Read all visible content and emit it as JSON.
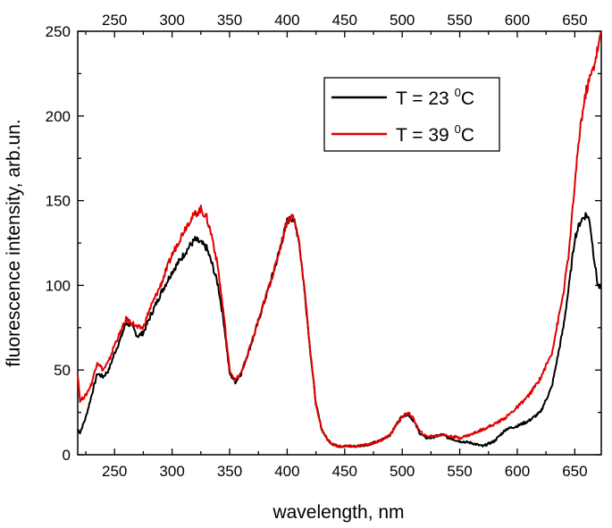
{
  "chart_data": {
    "type": "line",
    "title": "",
    "xlabel": "wavelength, nm",
    "ylabel": "fluorescence intensity, arb.un.",
    "xlim": [
      218,
      673
    ],
    "ylim": [
      0,
      250
    ],
    "x_ticks": [
      250,
      300,
      350,
      400,
      450,
      500,
      550,
      600,
      650
    ],
    "y_ticks": [
      0,
      50,
      100,
      150,
      200,
      250
    ],
    "top_axis_ticks": [
      250,
      300,
      350,
      400,
      450,
      500,
      550,
      600,
      650
    ],
    "grid": false,
    "legend": {
      "position": "top-right",
      "entries": [
        {
          "text": "T = 23 ",
          "sup": "0",
          "unit": "C",
          "color": "#000000"
        },
        {
          "text": "T = 39 ",
          "sup": "0",
          "unit": "C",
          "color": "#e00000"
        }
      ]
    },
    "series": [
      {
        "color": "#000000",
        "x": [
          218,
          220,
          225,
          230,
          235,
          240,
          245,
          250,
          255,
          260,
          265,
          270,
          275,
          280,
          290,
          300,
          310,
          315,
          320,
          325,
          330,
          335,
          340,
          345,
          350,
          355,
          360,
          370,
          380,
          390,
          395,
          400,
          405,
          410,
          415,
          420,
          425,
          430,
          435,
          440,
          445,
          450,
          460,
          470,
          480,
          490,
          495,
          500,
          505,
          510,
          515,
          520,
          525,
          530,
          535,
          540,
          550,
          560,
          570,
          580,
          590,
          600,
          610,
          620,
          630,
          640,
          645,
          650,
          655,
          660,
          663,
          666,
          670,
          673
        ],
        "y": [
          15,
          13,
          22,
          35,
          48,
          46,
          50,
          60,
          68,
          78,
          76,
          70,
          72,
          80,
          95,
          108,
          118,
          123,
          127,
          125,
          122,
          112,
          100,
          78,
          48,
          43,
          48,
          68,
          90,
          112,
          125,
          138,
          140,
          128,
          98,
          62,
          30,
          15,
          9,
          6,
          5,
          5,
          5,
          6,
          8,
          12,
          18,
          23,
          24,
          20,
          13,
          10,
          10,
          11,
          12,
          10,
          8,
          7,
          5,
          8,
          15,
          17,
          20,
          25,
          40,
          75,
          100,
          128,
          138,
          142,
          138,
          120,
          100,
          98
        ]
      },
      {
        "color": "#e00000",
        "x": [
          218,
          220,
          225,
          230,
          235,
          240,
          245,
          250,
          255,
          260,
          265,
          270,
          275,
          280,
          290,
          300,
          310,
          315,
          320,
          325,
          330,
          335,
          340,
          345,
          350,
          355,
          360,
          370,
          380,
          390,
          395,
          400,
          405,
          410,
          415,
          420,
          425,
          430,
          435,
          440,
          445,
          450,
          460,
          470,
          480,
          490,
          495,
          500,
          505,
          510,
          515,
          520,
          525,
          530,
          535,
          540,
          550,
          560,
          570,
          580,
          590,
          600,
          610,
          620,
          630,
          640,
          645,
          650,
          655,
          660,
          663,
          666,
          670,
          673
        ],
        "y": [
          48,
          32,
          35,
          42,
          55,
          50,
          55,
          65,
          72,
          80,
          78,
          75,
          75,
          85,
          100,
          118,
          132,
          138,
          142,
          145,
          140,
          128,
          110,
          82,
          50,
          44,
          48,
          68,
          90,
          112,
          125,
          138,
          141,
          128,
          98,
          62,
          30,
          15,
          9,
          6,
          5,
          5,
          5,
          6,
          8,
          12,
          18,
          22,
          25,
          21,
          14,
          11,
          11,
          11,
          12,
          11,
          10,
          12,
          15,
          18,
          22,
          28,
          35,
          45,
          60,
          95,
          120,
          160,
          195,
          215,
          222,
          228,
          240,
          248
        ]
      }
    ]
  }
}
